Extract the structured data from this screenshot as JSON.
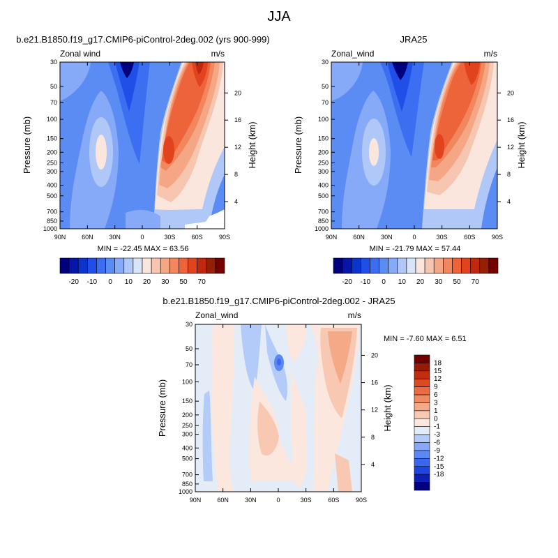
{
  "figure": {
    "title": "JJA"
  },
  "colors": {
    "top_scale": [
      "#00007f",
      "#0616a9",
      "#0c33cc",
      "#1f4fe6",
      "#3b6ef0",
      "#5b8cf4",
      "#86aaf7",
      "#b0c8f8",
      "#d8e4f7",
      "#fbe6de",
      "#f7c6b0",
      "#f5a684",
      "#f2865c",
      "#ee643a",
      "#e1431e",
      "#c0290e",
      "#962006",
      "#750000"
    ],
    "diff_scale": [
      "#00007f",
      "#0c20b8",
      "#1f44e0",
      "#3b66ef",
      "#5b88f3",
      "#86a8f6",
      "#b3cbf8",
      "#e3ecf7",
      "#fbe7de",
      "#f8c8b3",
      "#f4a987",
      "#f08b61",
      "#ea6c40",
      "#dc4a22",
      "#c52c0e",
      "#981a04",
      "#700000"
    ]
  },
  "chart_data": [
    {
      "type": "heatmap",
      "title": "b.e21.B1850.f19_g17.CMIP6-piControl-2deg.002 (yrs 900-999)",
      "left_label": "Zonal wind",
      "right_label": "m/s",
      "ylabel": "Pressure (mb)",
      "y2label": "Height (km)",
      "x_ticks": [
        "90N",
        "60N",
        "30N",
        "0",
        "30S",
        "60S",
        "90S"
      ],
      "y_ticks": [
        "30",
        "50",
        "70",
        "100",
        "150",
        "200",
        "250",
        "300",
        "400",
        "500",
        "700",
        "850",
        "1000"
      ],
      "y2_ticks": [
        "20",
        "16",
        "12",
        "8",
        "4"
      ],
      "stats": "MIN = -22.45   MAX =  63.56",
      "colorbar_labels": [
        "-20",
        "-10",
        "0",
        "10",
        "20",
        "30",
        "50",
        "70"
      ],
      "min": -22.45,
      "max": 63.56
    },
    {
      "type": "heatmap",
      "title": "JRA25",
      "left_label": "Zonal_wind",
      "right_label": "m/s",
      "ylabel": "Pressure (mb)",
      "y2label": "Height (km)",
      "x_ticks": [
        "90N",
        "60N",
        "30N",
        "0",
        "30S",
        "60S",
        "90S"
      ],
      "y_ticks": [
        "30",
        "50",
        "70",
        "100",
        "150",
        "200",
        "250",
        "300",
        "400",
        "500",
        "700",
        "850",
        "1000"
      ],
      "y2_ticks": [
        "20",
        "16",
        "12",
        "8",
        "4"
      ],
      "stats": "MIN = -21.79   MAX =  57.44",
      "colorbar_labels": [
        "-20",
        "-10",
        "0",
        "10",
        "20",
        "30",
        "50",
        "70"
      ],
      "min": -21.79,
      "max": 57.44
    },
    {
      "type": "heatmap",
      "title": "b.e21.B1850.f19_g17.CMIP6-piControl-2deg.002 - JRA25",
      "left_label": "Zonal_wind",
      "right_label": "m/s",
      "ylabel": "Pressure (mb)",
      "y2label": "Height (km)",
      "x_ticks": [
        "90N",
        "60N",
        "30N",
        "0",
        "30S",
        "60S",
        "90S"
      ],
      "y_ticks": [
        "30",
        "50",
        "70",
        "100",
        "150",
        "200",
        "250",
        "300",
        "400",
        "500",
        "700",
        "850",
        "1000"
      ],
      "y2_ticks": [
        "20",
        "16",
        "12",
        "8",
        "4"
      ],
      "stats": "MIN =  -7.60   MAX =   6.51",
      "colorbar_labels": [
        "18",
        "15",
        "12",
        "9",
        "6",
        "3",
        "1",
        "0",
        "-1",
        "-3",
        "-6",
        "-9",
        "-12",
        "-15",
        "-18"
      ],
      "min": -7.6,
      "max": 6.51
    }
  ]
}
